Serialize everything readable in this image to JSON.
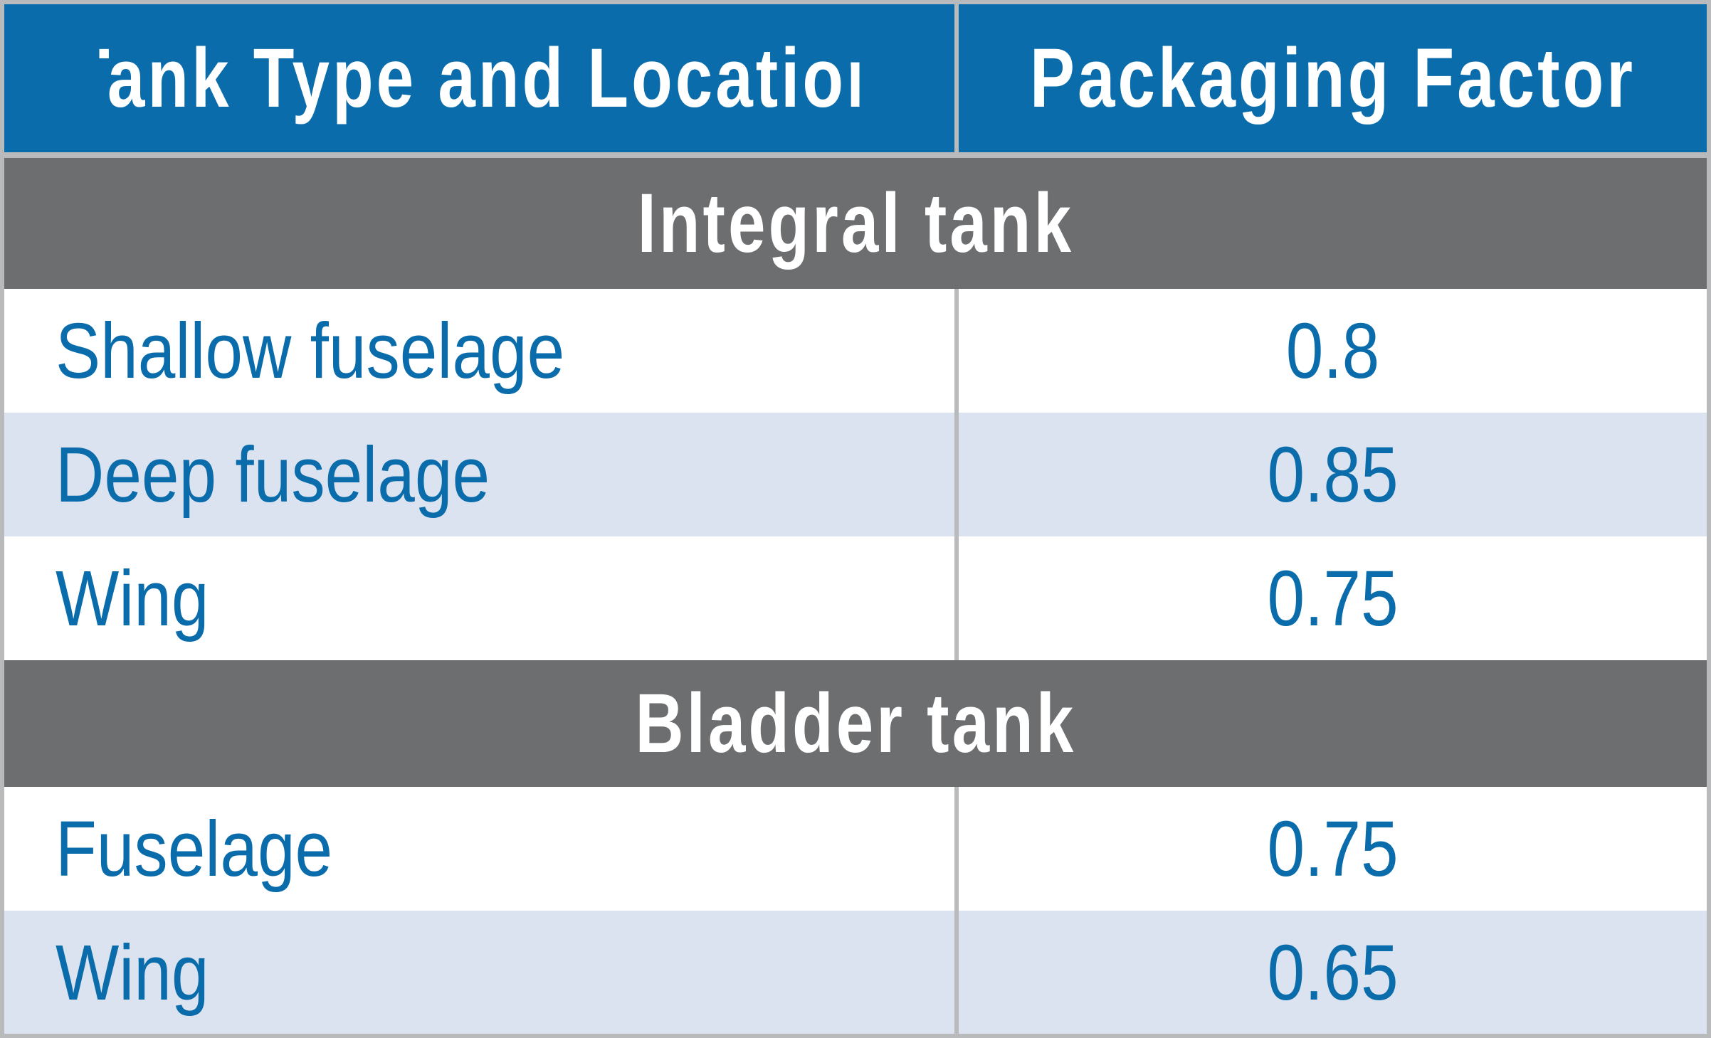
{
  "table": {
    "headers": [
      "Tank Type and Location",
      "Packaging Factor"
    ],
    "sections": [
      {
        "title": "Integral tank",
        "rows": [
          {
            "label": "Shallow fuselage",
            "value": "0.8"
          },
          {
            "label": "Deep fuselage",
            "value": "0.85"
          },
          {
            "label": "Wing",
            "value": "0.75"
          }
        ]
      },
      {
        "title": "Bladder tank",
        "rows": [
          {
            "label": "Fuselage",
            "value": "0.75"
          },
          {
            "label": "Wing",
            "value": "0.65"
          }
        ]
      }
    ]
  },
  "colors": {
    "header_bg": "#0a6caa",
    "section_bg": "#6d6e70",
    "alt_row_bg": "#dbe3f0",
    "text_blue": "#0a6caa",
    "border_gray": "#b9babc"
  }
}
